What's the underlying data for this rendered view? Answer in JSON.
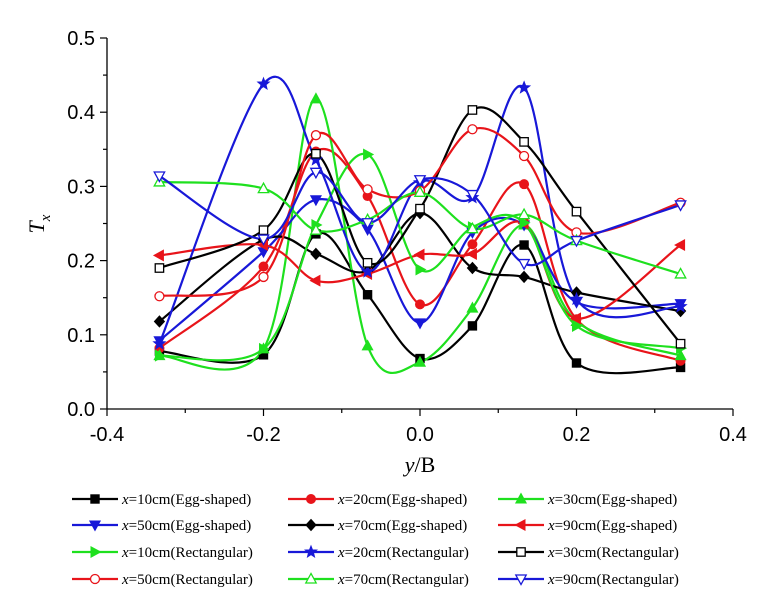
{
  "chart_data": {
    "type": "line",
    "xlabel_main": "y",
    "xlabel_rest": "/B",
    "ylabel_main": "T",
    "ylabel_sub": "x",
    "xlim": [
      -0.4,
      0.4
    ],
    "ylim": [
      0.0,
      0.5
    ],
    "xticks": [
      -0.4,
      -0.2,
      0.0,
      0.2,
      0.4
    ],
    "yticks": [
      0.0,
      0.1,
      0.2,
      0.3,
      0.4,
      0.5
    ],
    "xtick_labels": [
      "-0.4",
      "-0.2",
      "0.0",
      "0.2",
      "0.4"
    ],
    "ytick_labels": [
      "0.0",
      "0.1",
      "0.2",
      "0.3",
      "0.4",
      "0.5"
    ],
    "grid": false,
    "legend_position": "bottom",
    "x": [
      -0.333,
      -0.2,
      -0.133,
      -0.067,
      0.0,
      0.067,
      0.133,
      0.2,
      0.333
    ],
    "series": [
      {
        "name_var": "x",
        "name_rest": "=10cm(Egg-shaped)",
        "color": "#000000",
        "marker": "square-filled",
        "values": [
          0.078,
          0.073,
          0.236,
          0.154,
          0.068,
          0.112,
          0.221,
          0.062,
          0.056
        ]
      },
      {
        "name_var": "x",
        "name_rest": "=20cm(Egg-shaped)",
        "color": "#e8141a",
        "marker": "circle-filled",
        "values": [
          0.082,
          0.192,
          0.347,
          0.287,
          0.141,
          0.222,
          0.303,
          0.121,
          0.065
        ]
      },
      {
        "name_var": "x",
        "name_rest": "=30cm(Egg-shaped)",
        "color": "#1ee01e",
        "marker": "triangle-up-filled",
        "values": [
          0.072,
          0.081,
          0.418,
          0.085,
          0.063,
          0.136,
          0.248,
          0.118,
          0.072
        ]
      },
      {
        "name_var": "x",
        "name_rest": "=50cm(Egg-shaped)",
        "color": "#1818d8",
        "marker": "triangle-down-filled",
        "values": [
          0.092,
          0.212,
          0.282,
          0.242,
          0.116,
          0.238,
          0.248,
          0.144,
          0.142
        ]
      },
      {
        "name_var": "x",
        "name_rest": "=70cm(Egg-shaped)",
        "color": "#000000",
        "marker": "diamond-filled",
        "values": [
          0.118,
          0.228,
          0.209,
          0.186,
          0.264,
          0.19,
          0.178,
          0.157,
          0.132
        ]
      },
      {
        "name_var": "x",
        "name_rest": "=90cm(Egg-shaped)",
        "color": "#e8141a",
        "marker": "triangle-left-filled",
        "values": [
          0.207,
          0.221,
          0.173,
          0.182,
          0.208,
          0.209,
          0.25,
          0.122,
          0.221
        ]
      },
      {
        "name_var": "x",
        "name_rest": "=10cm(Rectangular)",
        "color": "#1ee01e",
        "marker": "triangle-right-filled",
        "values": [
          0.072,
          0.081,
          0.248,
          0.343,
          0.188,
          0.245,
          0.251,
          0.112,
          0.082
        ]
      },
      {
        "name_var": "x",
        "name_rest": "=20cm(Rectangular)",
        "color": "#1818d8",
        "marker": "star-filled",
        "values": [
          0.088,
          0.438,
          0.336,
          0.185,
          0.305,
          0.285,
          0.433,
          0.148,
          0.138
        ]
      },
      {
        "name_var": "x",
        "name_rest": "=30cm(Rectangular)",
        "color": "#000000",
        "marker": "square-open",
        "values": [
          0.19,
          0.241,
          0.344,
          0.197,
          0.27,
          0.403,
          0.36,
          0.266,
          0.088
        ]
      },
      {
        "name_var": "x",
        "name_rest": "=50cm(Rectangular)",
        "color": "#e8141a",
        "marker": "circle-open",
        "values": [
          0.152,
          0.178,
          0.369,
          0.296,
          0.294,
          0.377,
          0.341,
          0.238,
          0.278
        ]
      },
      {
        "name_var": "x",
        "name_rest": "=70cm(Rectangular)",
        "color": "#1ee01e",
        "marker": "triangle-up-open",
        "values": [
          0.306,
          0.297,
          0.241,
          0.255,
          0.292,
          0.243,
          0.262,
          0.227,
          0.182
        ]
      },
      {
        "name_var": "x",
        "name_rest": "=90cm(Rectangular)",
        "color": "#1818d8",
        "marker": "triangle-down-open",
        "values": [
          0.314,
          0.229,
          0.319,
          0.251,
          0.309,
          0.289,
          0.196,
          0.227,
          0.275
        ]
      }
    ]
  }
}
